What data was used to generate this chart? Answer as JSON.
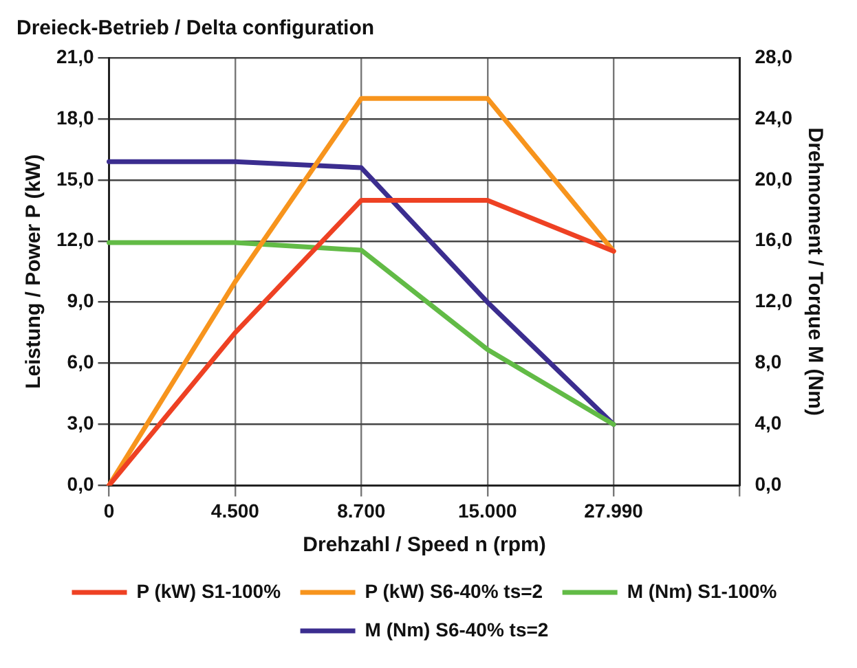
{
  "chart_data": {
    "type": "line",
    "title": "Dreieck-Betrieb / Delta configuration",
    "xlabel": "Drehzahl / Speed n (rpm)",
    "ylabel": "Leistung / Power P (kW)",
    "y2label": "Drehmoment / Torque M (Nm)",
    "categories": [
      "0",
      "4.500",
      "8.700",
      "15.000",
      "27.990",
      null
    ],
    "series": [
      {
        "name": "P (kW) S1-100%",
        "color": "#ee4123",
        "values": [
          0,
          7.5,
          14.0,
          14.0,
          11.5,
          null
        ]
      },
      {
        "name": "P (kW) S6-40% ts=2",
        "color": "#f7941d",
        "values": [
          0,
          10.0,
          19.0,
          19.0,
          11.5,
          null
        ]
      },
      {
        "name": "M (Nm) S1-100%",
        "color": "#62bb46",
        "axis": "y2",
        "values": [
          15.9,
          15.9,
          15.4,
          8.9,
          4.0,
          null
        ]
      },
      {
        "name": "M (Nm) S6-40% ts=2",
        "color": "#3b2d8f",
        "axis": "y2",
        "values": [
          21.2,
          21.2,
          20.8,
          12.0,
          4.0,
          null
        ]
      }
    ],
    "ylim": [
      0,
      21
    ],
    "yticks": [
      {
        "value": 0,
        "label": "0,0"
      },
      {
        "value": 3,
        "label": "3,0"
      },
      {
        "value": 6,
        "label": "6,0"
      },
      {
        "value": 9,
        "label": "9,0"
      },
      {
        "value": 12,
        "label": "12,0"
      },
      {
        "value": 15,
        "label": "15,0"
      },
      {
        "value": 18,
        "label": "18,0"
      },
      {
        "value": 21,
        "label": "21,0"
      }
    ],
    "y2lim": [
      0,
      28
    ],
    "y2ticks": [
      {
        "value": 0,
        "label": "0,0"
      },
      {
        "value": 4,
        "label": "4,0"
      },
      {
        "value": 8,
        "label": "8,0"
      },
      {
        "value": 12,
        "label": "12,0"
      },
      {
        "value": 16,
        "label": "16,0"
      },
      {
        "value": 20,
        "label": "20,0"
      },
      {
        "value": 24,
        "label": "24,0"
      },
      {
        "value": 28,
        "label": "28,0"
      }
    ],
    "grid": true,
    "legend": "bottom",
    "marker": "none",
    "line_style": "solid"
  }
}
